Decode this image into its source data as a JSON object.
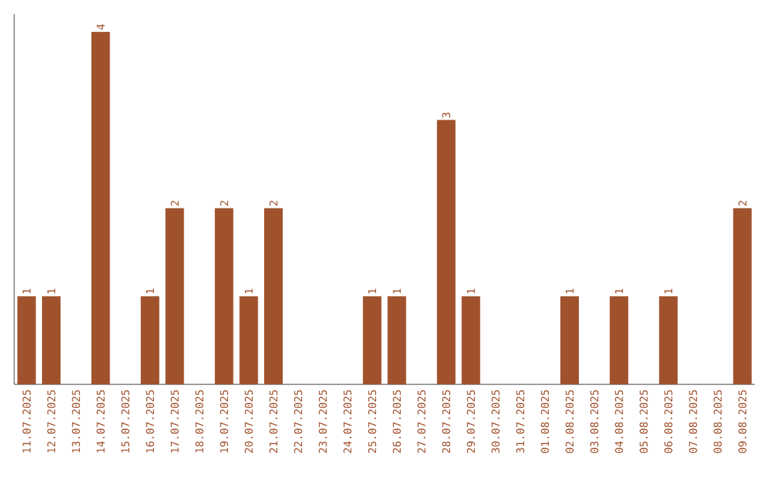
{
  "chart_data": {
    "type": "bar",
    "categories": [
      "11.07.2025",
      "12.07.2025",
      "13.07.2025",
      "14.07.2025",
      "15.07.2025",
      "16.07.2025",
      "17.07.2025",
      "18.07.2025",
      "19.07.2025",
      "20.07.2025",
      "21.07.2025",
      "22.07.2025",
      "23.07.2025",
      "24.07.2025",
      "25.07.2025",
      "26.07.2025",
      "27.07.2025",
      "28.07.2025",
      "29.07.2025",
      "30.07.2025",
      "31.07.2025",
      "01.08.2025",
      "02.08.2025",
      "03.08.2025",
      "04.08.2025",
      "05.08.2025",
      "06.08.2025",
      "07.08.2025",
      "08.08.2025",
      "09.08.2025"
    ],
    "values": [
      1,
      1,
      0,
      4,
      0,
      1,
      2,
      0,
      2,
      1,
      2,
      0,
      0,
      0,
      1,
      1,
      0,
      3,
      1,
      0,
      0,
      0,
      1,
      0,
      1,
      0,
      1,
      0,
      0,
      2
    ],
    "value_labels": [
      "1",
      "1",
      null,
      "4",
      null,
      "1",
      "2",
      null,
      "2",
      "1",
      "2",
      null,
      null,
      null,
      "1",
      "1",
      null,
      "3",
      "1",
      null,
      null,
      null,
      "1",
      null,
      "1",
      null,
      "1",
      null,
      null,
      "2"
    ],
    "color": "#a0522d",
    "ylim": [
      0,
      4.2
    ],
    "tick_labels": "x",
    "grid": false
  }
}
